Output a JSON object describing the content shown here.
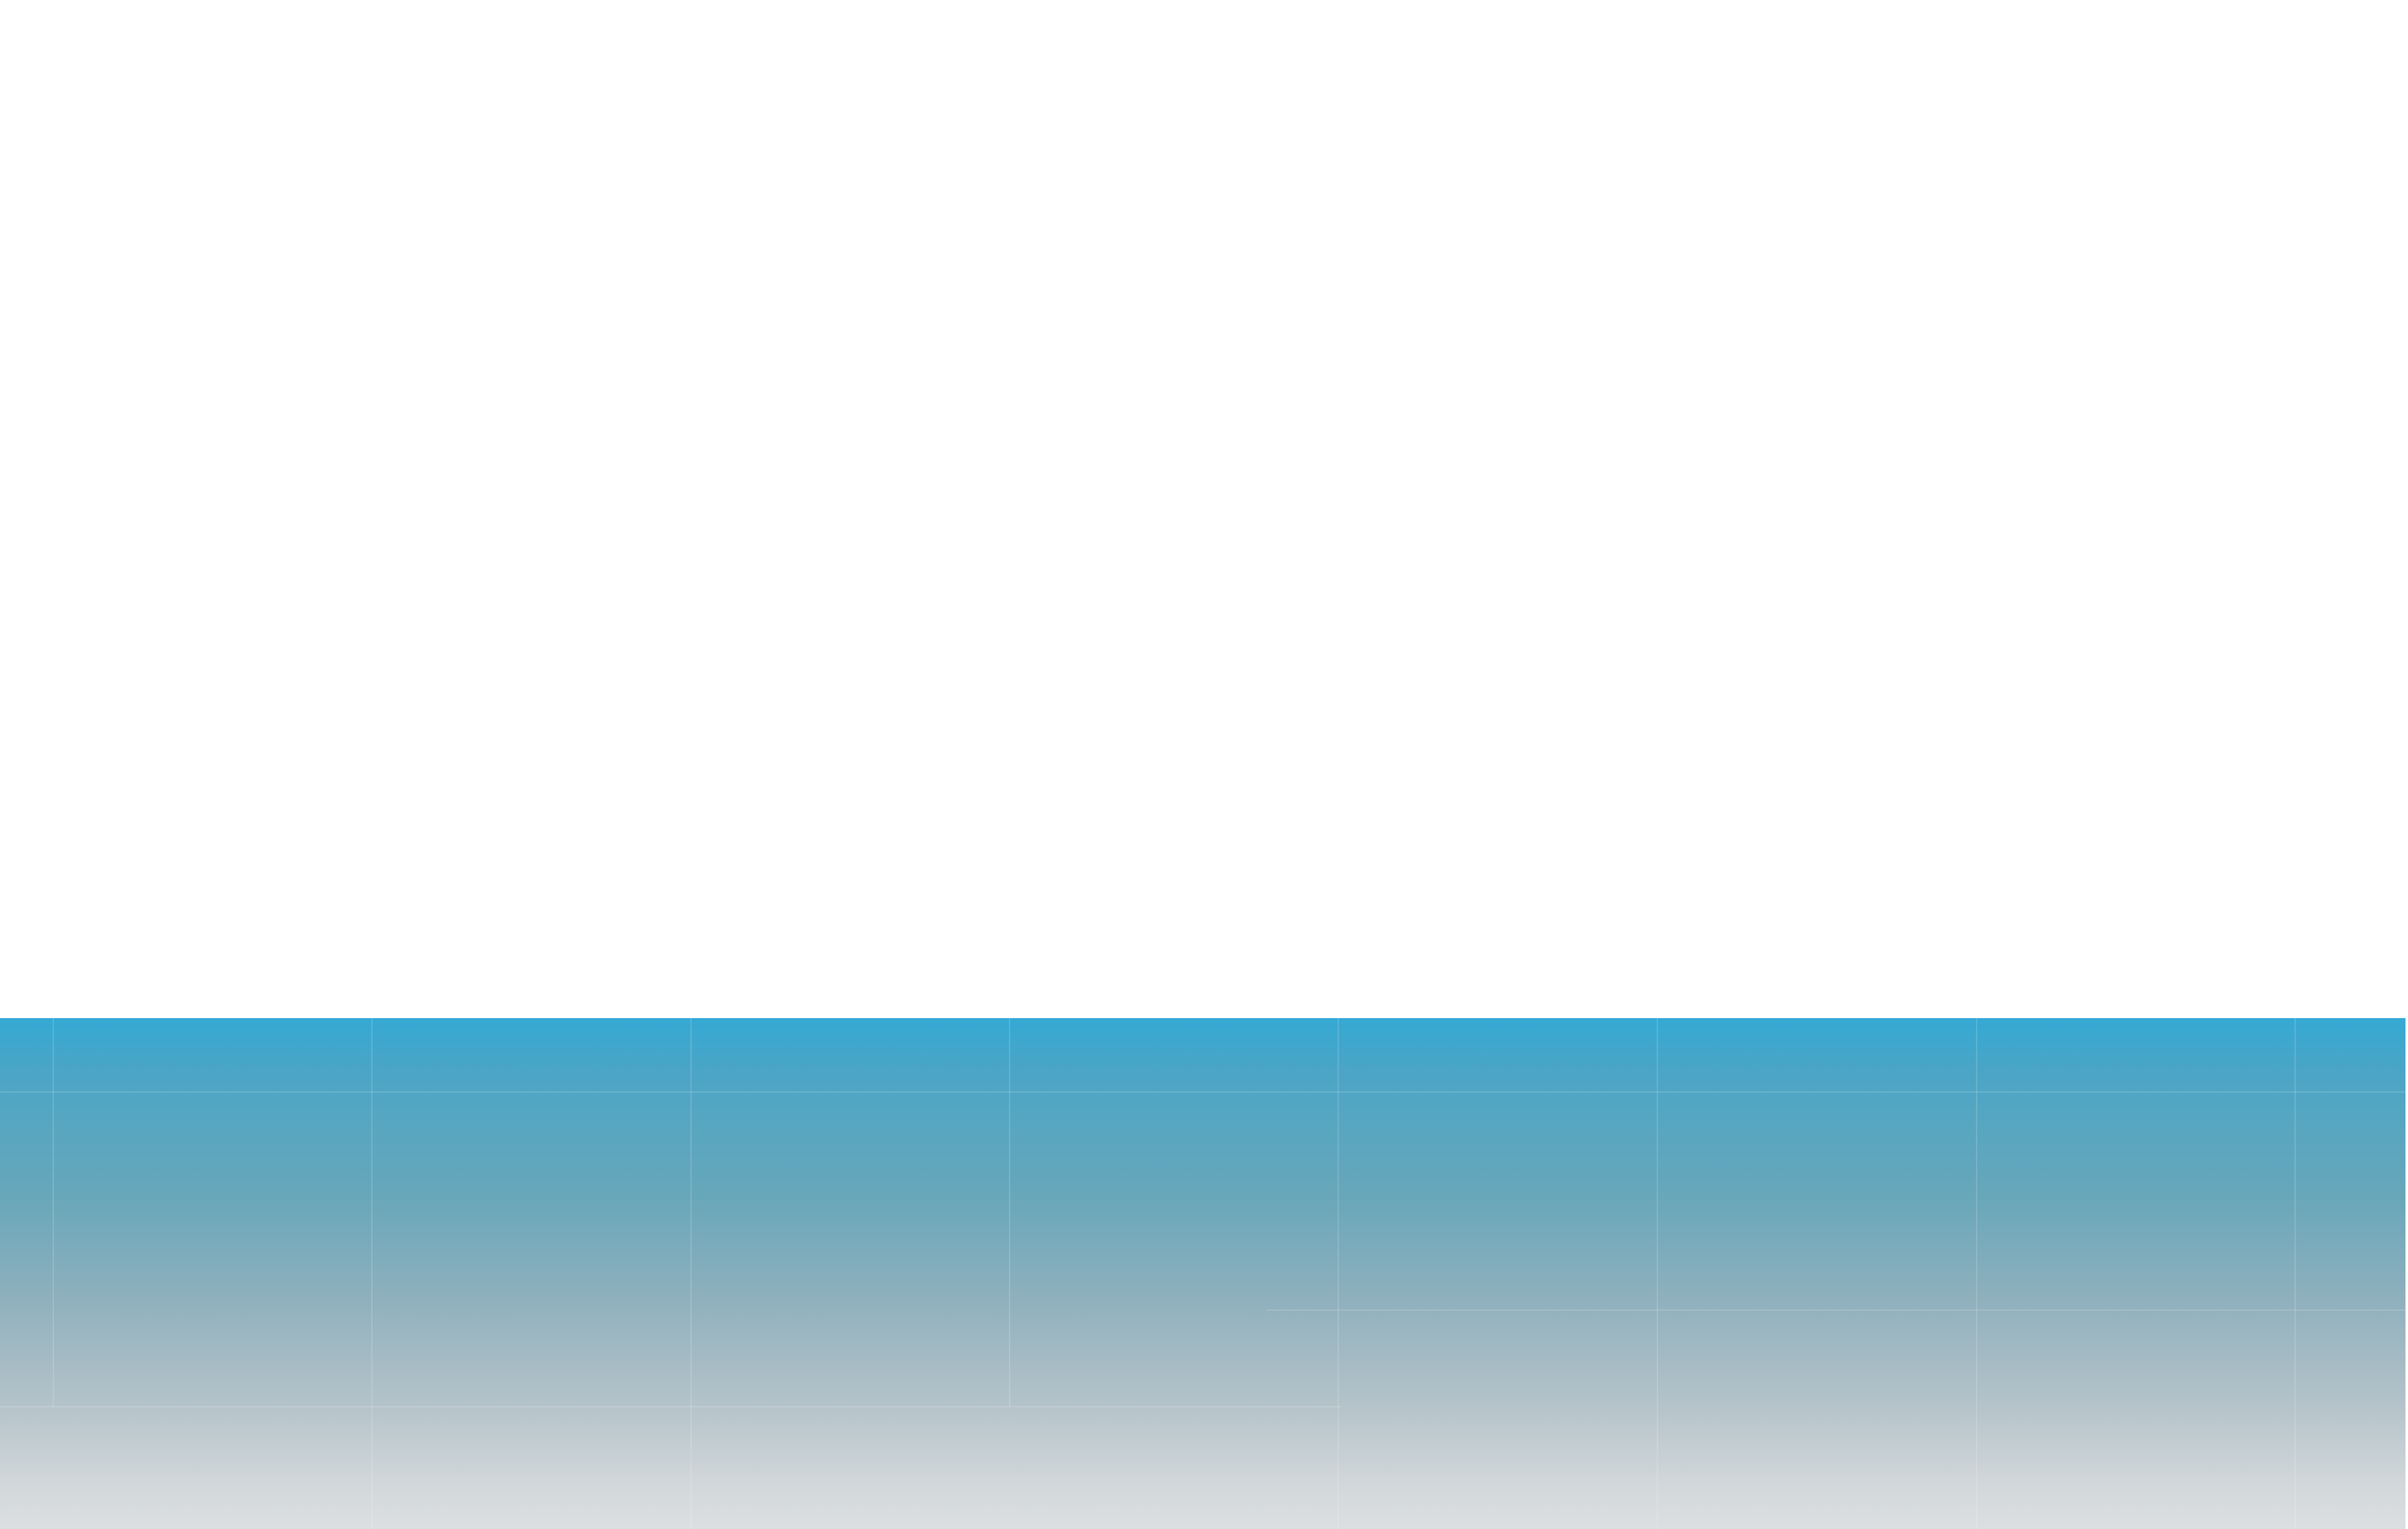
{
  "page": {
    "background_color": "#ffffff"
  },
  "footer_band": {
    "gradient_colors": [
      "#35a9d4",
      "#68a7ba",
      "#b3c2c9",
      "#dcdfe1"
    ]
  }
}
